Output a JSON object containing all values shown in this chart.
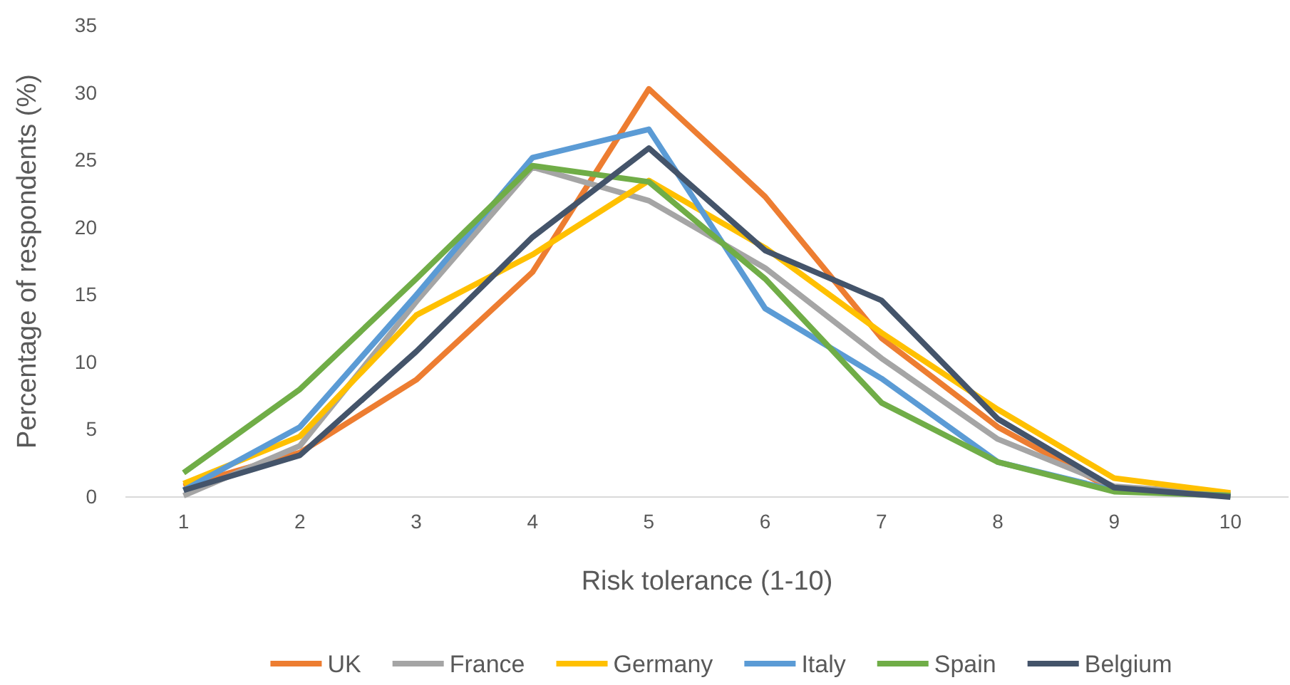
{
  "chart_data": {
    "type": "line",
    "xlabel": "Risk tolerance (1-10)",
    "ylabel": "Percentage of respondents (%)",
    "categories": [
      "1",
      "2",
      "3",
      "4",
      "5",
      "6",
      "7",
      "8",
      "9",
      "10"
    ],
    "series": [
      {
        "name": "UK",
        "color": "#ed7d31",
        "values": [
          0.8,
          3.3,
          8.7,
          16.7,
          30.3,
          22.3,
          11.8,
          5.2,
          0.5,
          0.2
        ]
      },
      {
        "name": "France",
        "color": "#a5a5a5",
        "values": [
          0.1,
          3.8,
          14.5,
          24.5,
          22.0,
          17.0,
          10.3,
          4.3,
          0.8,
          0.2
        ]
      },
      {
        "name": "Germany",
        "color": "#ffc000",
        "values": [
          1.0,
          4.5,
          13.5,
          18.0,
          23.5,
          18.5,
          12.2,
          6.5,
          1.4,
          0.3
        ]
      },
      {
        "name": "Italy",
        "color": "#5b9bd5",
        "values": [
          0.5,
          5.2,
          15.0,
          25.2,
          27.3,
          14.0,
          8.8,
          2.6,
          0.5,
          0.1
        ]
      },
      {
        "name": "Spain",
        "color": "#70ad47",
        "values": [
          1.8,
          8.0,
          16.2,
          24.6,
          23.4,
          16.2,
          7.0,
          2.6,
          0.4,
          0.1
        ]
      },
      {
        "name": "Belgium",
        "color": "#44546a",
        "values": [
          0.5,
          3.1,
          10.8,
          19.3,
          25.9,
          18.3,
          14.6,
          5.8,
          0.7,
          0.0
        ]
      }
    ],
    "ylim": [
      0,
      35
    ],
    "yticks": [
      0,
      5,
      10,
      15,
      20,
      25,
      30,
      35
    ],
    "grid": false,
    "legend": "bottom",
    "marker": "none",
    "line_style": "solid"
  }
}
